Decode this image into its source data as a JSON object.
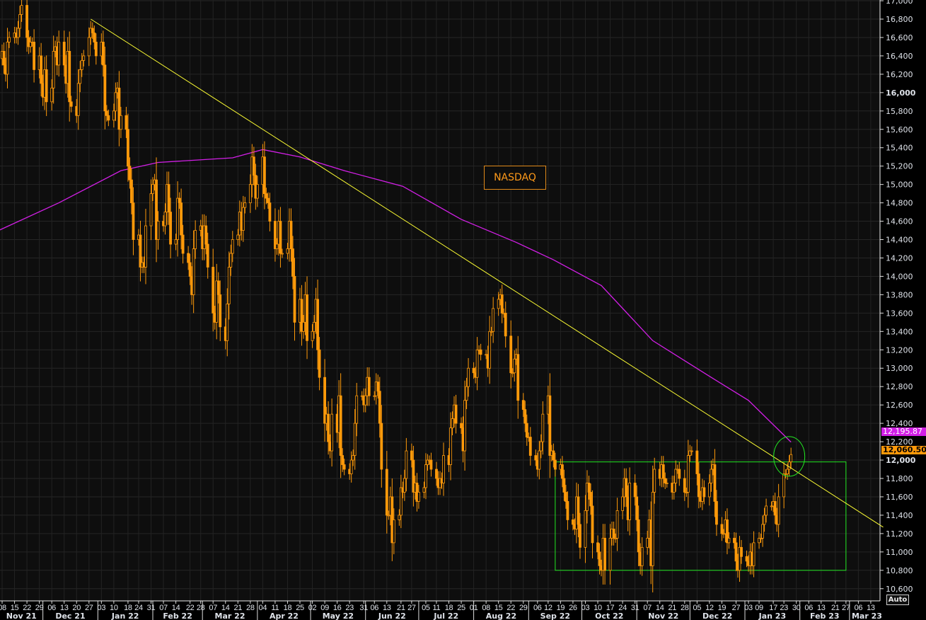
{
  "chart_data": {
    "type": "candlestick",
    "title": "NASDAQ",
    "start_date": "2021-11-08",
    "calendar": "weekdays",
    "closes": [
      16450,
      16300,
      16200,
      16550,
      16600,
      16650,
      16600,
      16700,
      16850,
      16950,
      16600,
      16500,
      16550,
      16550,
      16250,
      16400,
      16100,
      15950,
      16250,
      15900,
      16050,
      16450,
      16500,
      16300,
      16550,
      16300,
      16100,
      16450,
      15900,
      15850,
      15750,
      16100,
      16250,
      16350,
      16400,
      16600,
      16700,
      16650,
      16550,
      16400,
      16550,
      16300,
      15800,
      15750,
      15700,
      15800,
      16000,
      16050,
      15600,
      15750,
      15600,
      15200,
      15050,
      14800,
      14400,
      14450,
      14100,
      14150,
      14100,
      14550,
      14900,
      15000,
      15050,
      14400,
      14600,
      14550,
      14700,
      15000,
      14700,
      14350,
      14400,
      14850,
      14800,
      14450,
      14250,
      14150,
      14000,
      13800,
      14300,
      14500,
      14550,
      14300,
      14550,
      14350,
      14100,
      13600,
      13500,
      13950,
      13800,
      13450,
      13300,
      13700,
      14100,
      14250,
      14400,
      14450,
      14700,
      14500,
      14750,
      14800,
      15000,
      15300,
      15100,
      14850,
      15000,
      15300,
      14900,
      14850,
      14800,
      14600,
      14300,
      14350,
      14600,
      14250,
      14250,
      14300,
      14600,
      14300,
      14000,
      13500,
      13750,
      13400,
      13500,
      13800,
      13300,
      13400,
      13500,
      13750,
      13200,
      12900,
      12400,
      12500,
      12200,
      12100,
      12500,
      12300,
      12700,
      12050,
      11950,
      11900,
      11850,
      12000,
      12050,
      12400,
      12700,
      12700,
      12600,
      12700,
      12900,
      12700,
      12700,
      12850,
      12750,
      12400,
      11900,
      11400,
      11400,
      11600,
      11100,
      11350,
      11400,
      11700,
      11650,
      11800,
      12100,
      12000,
      11650,
      11750,
      11550,
      11650,
      11700,
      11950,
      12000,
      12000,
      11900,
      11800,
      11700,
      11800,
      11750,
      12050,
      11950,
      12350,
      12450,
      12600,
      12400,
      12350,
      12100,
      12650,
      12800,
      13000,
      12950,
      12900,
      13200,
      13200,
      13150,
      13150,
      13000,
      13400,
      13400,
      13650,
      13750,
      13800,
      13600,
      13600,
      13350,
      12950,
      12950,
      13100,
      13150,
      12650,
      12550,
      12400,
      12250,
      12250,
      12050,
      12000,
      11900,
      12100,
      12200,
      12500,
      12700,
      12050,
      12100,
      12000,
      11900,
      11950,
      11800,
      11650,
      11550,
      11350,
      11300,
      11250,
      11600,
      11300,
      11050,
      11450,
      11750,
      11650,
      11500,
      11100,
      11000,
      10850,
      10800,
      11150,
      10800,
      11150,
      11250,
      11150,
      11150,
      11450,
      11600,
      11800,
      11600,
      11350,
      11750,
      11600,
      11350,
      11000,
      10850,
      11050,
      11150,
      11350,
      10850,
      11650,
      11900,
      11800,
      11950,
      11800,
      11750,
      11750,
      11650,
      11750,
      11900,
      11900,
      11800,
      11650,
      11650,
      12050,
      12100,
      12100,
      11850,
      11600,
      11550,
      11700,
      11600,
      11750,
      11900,
      11950,
      11550,
      11300,
      11200,
      11200,
      11350,
      11100,
      11150,
      11100,
      10900,
      10800,
      11050,
      10950,
      10900,
      10850,
      11000,
      10850,
      11100,
      11150,
      11150,
      11300,
      11400,
      11500,
      11500,
      11550,
      11400,
      11300,
      11600,
      11850,
      11850,
      11900,
      11980,
      12060.5
    ],
    "moving_average": {
      "name": "Moving average",
      "color": "#d21fe6",
      "points": [
        [
          "2021-11-05",
          14490
        ],
        [
          "2021-12-10",
          14800
        ],
        [
          "2022-01-14",
          15150
        ],
        [
          "2022-02-04",
          15240
        ],
        [
          "2022-03-18",
          15290
        ],
        [
          "2022-04-04",
          15380
        ],
        [
          "2022-04-25",
          15300
        ],
        [
          "2022-05-20",
          15150
        ],
        [
          "2022-06-22",
          14980
        ],
        [
          "2022-07-25",
          14620
        ],
        [
          "2022-08-25",
          14370
        ],
        [
          "2022-09-15",
          14180
        ],
        [
          "2022-10-12",
          13900
        ],
        [
          "2022-11-10",
          13300
        ],
        [
          "2022-12-13",
          12900
        ],
        [
          "2023-01-03",
          12650
        ],
        [
          "2023-01-27",
          12195.87
        ]
      ]
    },
    "trendline": {
      "color": "#ffff33",
      "points": [
        [
          "2021-12-28",
          16800
        ],
        [
          "2023-03-20",
          11270
        ]
      ]
    },
    "range_box": {
      "color": "#22e622",
      "from": "2022-09-16",
      "to": "2023-02-27",
      "high": 11980,
      "low": 10800
    },
    "highlight_circle": {
      "color": "#22e622",
      "date": "2023-01-26",
      "price": 12040
    },
    "candle_color": "#ff9a0a",
    "ylim": [
      10550,
      17050
    ],
    "y_ticks": [
      "17,000",
      "16,800",
      "16,600",
      "16,400",
      "16,200",
      "16,000",
      "15,800",
      "15,600",
      "15,400",
      "15,200",
      "15,000",
      "14,800",
      "14,600",
      "14,400",
      "14,200",
      "14,000",
      "13,800",
      "13,600",
      "13,400",
      "13,200",
      "13,000",
      "12,800",
      "12,600",
      "12,400",
      "12,200",
      "12,000",
      "11,800",
      "11,600",
      "11,400",
      "11,200",
      "11,000",
      "10,800",
      "10,600"
    ],
    "x_months": [
      {
        "label": "Nov 21",
        "days": [
          "08",
          "15",
          "22",
          "29"
        ]
      },
      {
        "label": "Dec 21",
        "days": [
          "06",
          "13",
          "20",
          "27"
        ]
      },
      {
        "label": "Jan 22",
        "days": [
          "03",
          "10",
          "18",
          "24",
          "31"
        ]
      },
      {
        "label": "Feb 22",
        "days": [
          "07",
          "14",
          "22",
          "28"
        ]
      },
      {
        "label": "Mar 22",
        "days": [
          "07",
          "14",
          "21",
          "28"
        ]
      },
      {
        "label": "Apr 22",
        "days": [
          "04",
          "11",
          "18",
          "25"
        ]
      },
      {
        "label": "May 22",
        "days": [
          "02",
          "09",
          "16",
          "23",
          "31"
        ]
      },
      {
        "label": "Jun 22",
        "days": [
          "06",
          "13",
          "21",
          "27"
        ]
      },
      {
        "label": "Jul 22",
        "days": [
          "05",
          "11",
          "18",
          "25"
        ]
      },
      {
        "label": "Aug 22",
        "days": [
          "01",
          "08",
          "15",
          "22",
          "29"
        ]
      },
      {
        "label": "Sep 22",
        "days": [
          "06",
          "12",
          "19",
          "26"
        ]
      },
      {
        "label": "Oct 22",
        "days": [
          "03",
          "10",
          "17",
          "24",
          "31"
        ]
      },
      {
        "label": "Nov 22",
        "days": [
          "07",
          "14",
          "21",
          "28"
        ]
      },
      {
        "label": "Dec 22",
        "days": [
          "05",
          "12",
          "19",
          "27"
        ]
      },
      {
        "label": "Jan 23",
        "days": [
          "03",
          "09",
          "17",
          "23",
          "30"
        ]
      },
      {
        "label": "Feb 23",
        "days": [
          "06",
          "13",
          "21",
          "27"
        ]
      },
      {
        "label": "Mar 23",
        "days": [
          "06",
          "13"
        ]
      }
    ]
  },
  "labels": {
    "instrument": "NASDAQ",
    "ma_last": "12,195.87",
    "last_price": "12,060.50",
    "auto_button": "Auto"
  },
  "colors": {
    "ma_tag": "#d21fe6",
    "price_tag": "#ff9a0a"
  }
}
